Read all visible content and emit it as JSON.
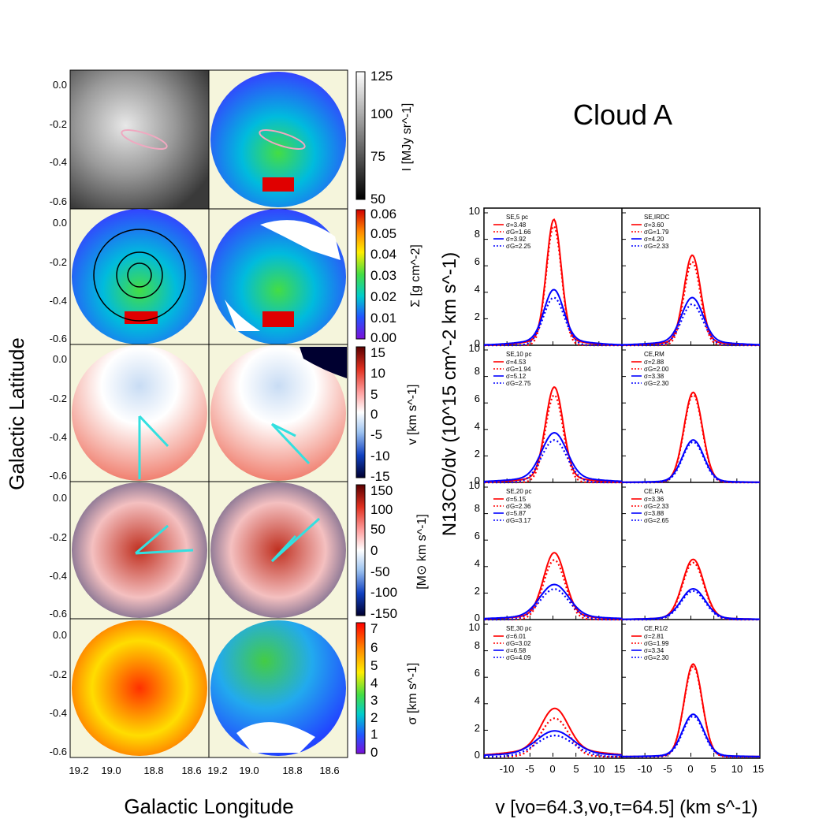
{
  "figure": {
    "title": "Cloud A",
    "left_ylabel": "Galactic Latitude",
    "left_xlabel": "Galactic Longitude",
    "right_ylabel": "N13CO/dv (10^15 cm^-2 km s^-1)",
    "right_xlabel": "v [vo=64.3,vo,τ=64.5] (km s^-1)"
  },
  "maps": {
    "yticks": [
      "0.0",
      "-0.2",
      "-0.4",
      "-0.6"
    ],
    "xticks": [
      "19.2",
      "19.0",
      "18.8",
      "18.6",
      "19.2",
      "19.0",
      "18.8",
      "18.6"
    ],
    "colorbars": [
      {
        "label": "I [MJy sr^-1]",
        "ticks": [
          "125",
          "100",
          "75",
          "50"
        ],
        "colors": [
          "#ffffff",
          "#000000"
        ]
      },
      {
        "label": "Σ [g cm^-2]",
        "ticks": [
          "0.06",
          "0.05",
          "0.04",
          "0.03",
          "0.02",
          "0.01",
          "0.00"
        ],
        "colors": [
          "#d00000",
          "#ff8800",
          "#ffee00",
          "#44dd44",
          "#00cccc",
          "#2255ff",
          "#7a10d8"
        ]
      },
      {
        "label": "v [km s^-1]",
        "ticks": [
          "15",
          "10",
          "5",
          "0",
          "-5",
          "-10",
          "-15"
        ],
        "colors": [
          "#5a0000",
          "#e03020",
          "#ffa0a0",
          "#ffffff",
          "#9fc4f0",
          "#1040c0",
          "#000030"
        ]
      },
      {
        "label": "[M⊙ km s^-1]",
        "ticks": [
          "150",
          "100",
          "50",
          "0",
          "-50",
          "-100",
          "-150"
        ],
        "colors": [
          "#5a0000",
          "#e03020",
          "#ffa0a0",
          "#ffffff",
          "#9fc4f0",
          "#1040c0",
          "#000030"
        ]
      },
      {
        "label": "σ [km s^-1]",
        "ticks": [
          "7",
          "6",
          "5",
          "4",
          "3",
          "2",
          "1",
          "0"
        ],
        "colors": [
          "#ff0000",
          "#ff8800",
          "#ffee00",
          "#44dd44",
          "#00cccc",
          "#2255ff",
          "#7a10d8"
        ]
      }
    ]
  },
  "chart_data": [
    {
      "type": "line",
      "title": "SE,5 pc",
      "xlim": [
        -15,
        15
      ],
      "ylim": [
        0,
        10
      ],
      "series": [
        {
          "name": "σ=3.48",
          "color": "#ff0000",
          "style": "solid",
          "peak": 9.0,
          "center": 0.2,
          "sigma": 1.6,
          "wing": 0.5
        },
        {
          "name": "σG=1.66",
          "color": "#ff0000",
          "style": "dotted",
          "peak": 9.0,
          "center": 0.2,
          "sigma": 1.66,
          "wing": 0.0
        },
        {
          "name": "σ=3.92",
          "color": "#0000ff",
          "style": "solid",
          "peak": 3.8,
          "center": 0.2,
          "sigma": 2.1,
          "wing": 0.4
        },
        {
          "name": "σG=2.25",
          "color": "#0000ff",
          "style": "dotted",
          "peak": 3.6,
          "center": 0.2,
          "sigma": 2.25,
          "wing": 0.0
        }
      ]
    },
    {
      "type": "line",
      "title": "SE,IRDC",
      "xlim": [
        -15,
        15
      ],
      "ylim": [
        0,
        10
      ],
      "series": [
        {
          "name": "σ=3.60",
          "color": "#ff0000",
          "style": "solid",
          "peak": 6.5,
          "center": 0.3,
          "sigma": 1.8,
          "wing": 0.3
        },
        {
          "name": "σG=1.79",
          "color": "#ff0000",
          "style": "dotted",
          "peak": 6.3,
          "center": 0.3,
          "sigma": 1.79,
          "wing": 0.0
        },
        {
          "name": "σ=4.20",
          "color": "#0000ff",
          "style": "solid",
          "peak": 3.3,
          "center": 0.3,
          "sigma": 2.3,
          "wing": 0.3
        },
        {
          "name": "σG=2.33",
          "color": "#0000ff",
          "style": "dotted",
          "peak": 3.1,
          "center": 0.3,
          "sigma": 2.33,
          "wing": 0.0
        }
      ]
    },
    {
      "type": "line",
      "title": "SE,10 pc",
      "xlim": [
        -15,
        15
      ],
      "ylim": [
        0,
        10
      ],
      "series": [
        {
          "name": "σ=4.53",
          "color": "#ff0000",
          "style": "solid",
          "peak": 6.8,
          "center": 0.3,
          "sigma": 1.9,
          "wing": 0.4
        },
        {
          "name": "σG=1.94",
          "color": "#ff0000",
          "style": "dotted",
          "peak": 6.6,
          "center": 0.3,
          "sigma": 1.94,
          "wing": 0.0
        },
        {
          "name": "σ=5.12",
          "color": "#0000ff",
          "style": "solid",
          "peak": 3.4,
          "center": 0.3,
          "sigma": 2.7,
          "wing": 0.35
        },
        {
          "name": "σG=2.75",
          "color": "#0000ff",
          "style": "dotted",
          "peak": 3.2,
          "center": 0.3,
          "sigma": 2.75,
          "wing": 0.0
        }
      ]
    },
    {
      "type": "line",
      "title": "CE,RM",
      "xlim": [
        -15,
        15
      ],
      "ylim": [
        0,
        10
      ],
      "series": [
        {
          "name": "σ=2.88",
          "color": "#ff0000",
          "style": "solid",
          "peak": 6.7,
          "center": 0.5,
          "sigma": 2.0,
          "wing": 0.1
        },
        {
          "name": "σG=2.00",
          "color": "#ff0000",
          "style": "dotted",
          "peak": 6.6,
          "center": 0.5,
          "sigma": 2.0,
          "wing": 0.0
        },
        {
          "name": "σ=3.38",
          "color": "#0000ff",
          "style": "solid",
          "peak": 3.1,
          "center": 0.5,
          "sigma": 2.3,
          "wing": 0.1
        },
        {
          "name": "σG=2.30",
          "color": "#0000ff",
          "style": "dotted",
          "peak": 3.05,
          "center": 0.5,
          "sigma": 2.3,
          "wing": 0.0
        }
      ]
    },
    {
      "type": "line",
      "title": "SE,20 pc",
      "xlim": [
        -15,
        15
      ],
      "ylim": [
        0,
        10
      ],
      "series": [
        {
          "name": "σ=5.15",
          "color": "#ff0000",
          "style": "solid",
          "peak": 4.7,
          "center": 0.3,
          "sigma": 2.3,
          "wing": 0.35
        },
        {
          "name": "σG=2.36",
          "color": "#ff0000",
          "style": "dotted",
          "peak": 4.5,
          "center": 0.3,
          "sigma": 2.36,
          "wing": 0.0
        },
        {
          "name": "σ=5.87",
          "color": "#0000ff",
          "style": "solid",
          "peak": 2.4,
          "center": 0.3,
          "sigma": 3.1,
          "wing": 0.25
        },
        {
          "name": "σG=3.17",
          "color": "#0000ff",
          "style": "dotted",
          "peak": 2.3,
          "center": 0.3,
          "sigma": 3.17,
          "wing": 0.0
        }
      ]
    },
    {
      "type": "line",
      "title": "CE,RA",
      "xlim": [
        -15,
        15
      ],
      "ylim": [
        0,
        10
      ],
      "series": [
        {
          "name": "σ=3.36",
          "color": "#ff0000",
          "style": "solid",
          "peak": 4.4,
          "center": 0.5,
          "sigma": 2.3,
          "wing": 0.15
        },
        {
          "name": "σG=2.33",
          "color": "#ff0000",
          "style": "dotted",
          "peak": 4.3,
          "center": 0.5,
          "sigma": 2.33,
          "wing": 0.0
        },
        {
          "name": "σ=3.88",
          "color": "#0000ff",
          "style": "solid",
          "peak": 2.2,
          "center": 0.5,
          "sigma": 2.6,
          "wing": 0.12
        },
        {
          "name": "σG=2.65",
          "color": "#0000ff",
          "style": "dotted",
          "peak": 2.15,
          "center": 0.5,
          "sigma": 2.65,
          "wing": 0.0
        }
      ]
    },
    {
      "type": "line",
      "title": "SE,30 pc",
      "xlim": [
        -15,
        15
      ],
      "ylim": [
        0,
        10
      ],
      "series": [
        {
          "name": "σ=6.01",
          "color": "#ff0000",
          "style": "solid",
          "peak": 3.1,
          "center": 0.4,
          "sigma": 2.9,
          "wing": 0.55
        },
        {
          "name": "σG=3.02",
          "color": "#ff0000",
          "style": "dotted",
          "peak": 2.9,
          "center": 0.4,
          "sigma": 3.02,
          "wing": 0.0
        },
        {
          "name": "σ=6.58",
          "color": "#0000ff",
          "style": "solid",
          "peak": 1.7,
          "center": 0.4,
          "sigma": 3.9,
          "wing": 0.25
        },
        {
          "name": "σG=4.09",
          "color": "#0000ff",
          "style": "dotted",
          "peak": 1.6,
          "center": 0.4,
          "sigma": 4.09,
          "wing": 0.0
        }
      ]
    },
    {
      "type": "line",
      "title": "CE,R1/2",
      "xlim": [
        -15,
        15
      ],
      "ylim": [
        0,
        10
      ],
      "series": [
        {
          "name": "σ=2.81",
          "color": "#ff0000",
          "style": "solid",
          "peak": 6.9,
          "center": 0.5,
          "sigma": 1.95,
          "wing": 0.1
        },
        {
          "name": "σG=1.99",
          "color": "#ff0000",
          "style": "dotted",
          "peak": 6.8,
          "center": 0.5,
          "sigma": 1.99,
          "wing": 0.0
        },
        {
          "name": "σ=3.34",
          "color": "#0000ff",
          "style": "solid",
          "peak": 3.1,
          "center": 0.5,
          "sigma": 2.3,
          "wing": 0.1
        },
        {
          "name": "σG=2.30",
          "color": "#0000ff",
          "style": "dotted",
          "peak": 3.05,
          "center": 0.5,
          "sigma": 2.3,
          "wing": 0.0
        }
      ]
    }
  ],
  "spectra_axes": {
    "yticks": [
      "0",
      "2",
      "4",
      "6",
      "8",
      "10"
    ],
    "xticks": [
      "-10",
      "-5",
      "0",
      "5",
      "10",
      "15",
      "-10",
      "-5",
      "0",
      "5",
      "10",
      "15"
    ]
  }
}
